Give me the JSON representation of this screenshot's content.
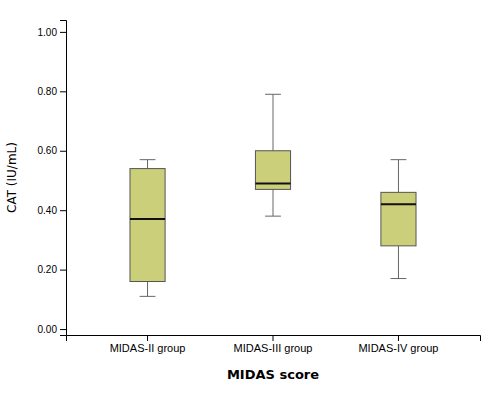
{
  "chart_data": {
    "type": "box",
    "xlabel": "MIDAS score",
    "ylabel": "CAT (IU/mL)",
    "categories": [
      "MIDAS-II group",
      "MIDAS-III group",
      "MIDAS-IV group"
    ],
    "boxes": [
      {
        "whisker_low": 0.11,
        "q1": 0.16,
        "median": 0.37,
        "q3": 0.54,
        "whisker_high": 0.57
      },
      {
        "whisker_low": 0.38,
        "q1": 0.47,
        "median": 0.49,
        "q3": 0.6,
        "whisker_high": 0.79
      },
      {
        "whisker_low": 0.17,
        "q1": 0.28,
        "median": 0.42,
        "q3": 0.46,
        "whisker_high": 0.57
      }
    ],
    "color": "#cccf7a",
    "ylim": [
      -0.02,
      1.04
    ],
    "yticks": [
      {
        "value": 0.0,
        "label": "0.00"
      },
      {
        "value": 0.2,
        "label": "0.20"
      },
      {
        "value": 0.4,
        "label": "0.40"
      },
      {
        "value": 0.6,
        "label": "0.60"
      },
      {
        "value": 0.8,
        "label": "0.80"
      },
      {
        "value": 1.0,
        "label": "1.00"
      }
    ],
    "grid": false
  }
}
